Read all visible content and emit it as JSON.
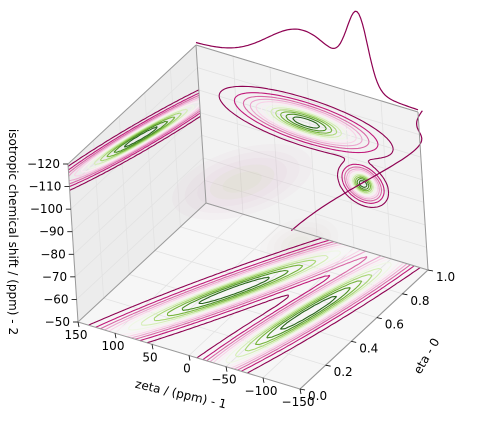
{
  "chart_data": {
    "type": "3d-contour",
    "axes": {
      "zeta": {
        "label": "zeta / (ppm) - 1",
        "range": [
          150,
          -150
        ],
        "ticks": [
          150,
          100,
          50,
          0,
          -50,
          -100,
          -150
        ],
        "tick_labels": [
          "150",
          "100",
          "50",
          "0",
          "−50",
          "−100",
          "−150"
        ]
      },
      "eta": {
        "label": "eta - 0",
        "range": [
          0.0,
          1.0
        ],
        "ticks": [
          0.0,
          0.2,
          0.4,
          0.6,
          0.8,
          1.0
        ],
        "tick_labels": [
          "0.0",
          "0.2",
          "0.4",
          "0.6",
          "0.8",
          "1.0"
        ]
      },
      "iso": {
        "label": "isotropic chemical shift / (ppm) - 2",
        "range": [
          -50,
          -120
        ],
        "ticks": [
          -50,
          -60,
          -70,
          -80,
          -90,
          -100,
          -110,
          -120
        ],
        "tick_labels": [
          "−50",
          "−60",
          "−70",
          "−80",
          "−90",
          "−100",
          "−110",
          "−120"
        ]
      }
    },
    "projections": [
      {
        "name": "zeta-iso (back wall)",
        "peaks": [
          {
            "zeta": 5,
            "iso": -100,
            "s_zeta": 48,
            "s_iso": 4.5
          },
          {
            "zeta": -68,
            "iso": -80,
            "s_zeta": 14,
            "s_iso": 4.0
          }
        ]
      },
      {
        "name": "eta-iso (left wall)",
        "peaks": [
          {
            "eta": 0.55,
            "iso": -103,
            "s_eta": 0.36,
            "s_iso": 7.5,
            "rho": 0.93
          }
        ]
      },
      {
        "name": "zeta-eta (floor)",
        "peaks": [
          {
            "zeta": 25,
            "eta": 0.5,
            "s_zeta": 60,
            "s_eta": 0.4,
            "rho": -0.95
          },
          {
            "zeta": -75,
            "eta": 0.5,
            "s_zeta": 30,
            "s_eta": 0.42,
            "rho": -0.85
          }
        ]
      }
    ],
    "marginals": [
      "zeta",
      "eta"
    ],
    "colormap": [
      "#8e0152",
      "#c51b7d",
      "#de77ae",
      "#f1b6da",
      "#fde0ef",
      "#f7f7f7",
      "#e6f5d0",
      "#b8e186",
      "#7fbc41",
      "#4d9221",
      "#276419"
    ],
    "grid": true
  }
}
